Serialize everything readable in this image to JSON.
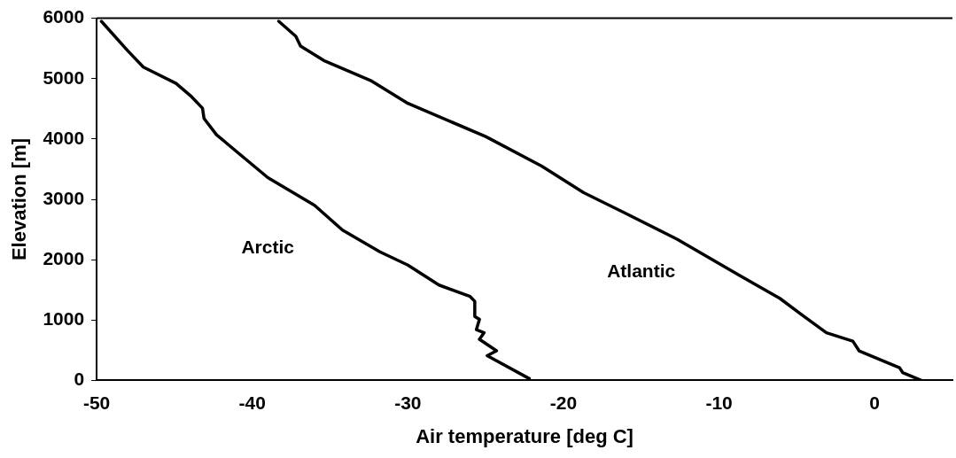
{
  "chart_data": {
    "type": "line",
    "xlabel": "Air temperature [deg C]",
    "ylabel": "Elevation [m]",
    "xlim": [
      -50,
      5
    ],
    "xticks": [
      -50,
      -40,
      -30,
      -20,
      -10,
      0
    ],
    "ylim": [
      0,
      6000
    ],
    "yticks": [
      0,
      1000,
      2000,
      3000,
      4000,
      5000,
      6000
    ],
    "grid": false,
    "legend": false,
    "marker": "none",
    "line_style": "solid",
    "series": [
      {
        "name": "Arctic",
        "color": "#000000",
        "x": [
          -49.7,
          -48.0,
          -47.0,
          -44.9,
          -43.9,
          -43.2,
          -43.1,
          -42.3,
          -39.0,
          -36.0,
          -34.2,
          -31.8,
          -30.0,
          -28.0,
          -26.0,
          -25.7,
          -25.7,
          -25.4,
          -25.6,
          -25.1,
          -25.4,
          -24.3,
          -24.9,
          -22.2
        ],
        "values": [
          5950,
          5460,
          5190,
          4920,
          4700,
          4510,
          4340,
          4070,
          3360,
          2900,
          2490,
          2130,
          1910,
          1580,
          1390,
          1310,
          1060,
          1010,
          840,
          790,
          680,
          490,
          410,
          30
        ]
      },
      {
        "name": "Atlantic",
        "color": "#000000",
        "x": [
          -38.3,
          -37.2,
          -36.9,
          -35.4,
          -32.4,
          -30.0,
          -25.0,
          -21.4,
          -18.7,
          -16.1,
          -12.7,
          -8.7,
          -6.1,
          -4.7,
          -3.1,
          -1.4,
          -1.0,
          1.6,
          1.8,
          3.0
        ],
        "values": [
          5950,
          5700,
          5540,
          5300,
          4970,
          4590,
          4040,
          3550,
          3110,
          2780,
          2340,
          1740,
          1360,
          1090,
          790,
          650,
          490,
          210,
          130,
          0
        ]
      }
    ]
  }
}
